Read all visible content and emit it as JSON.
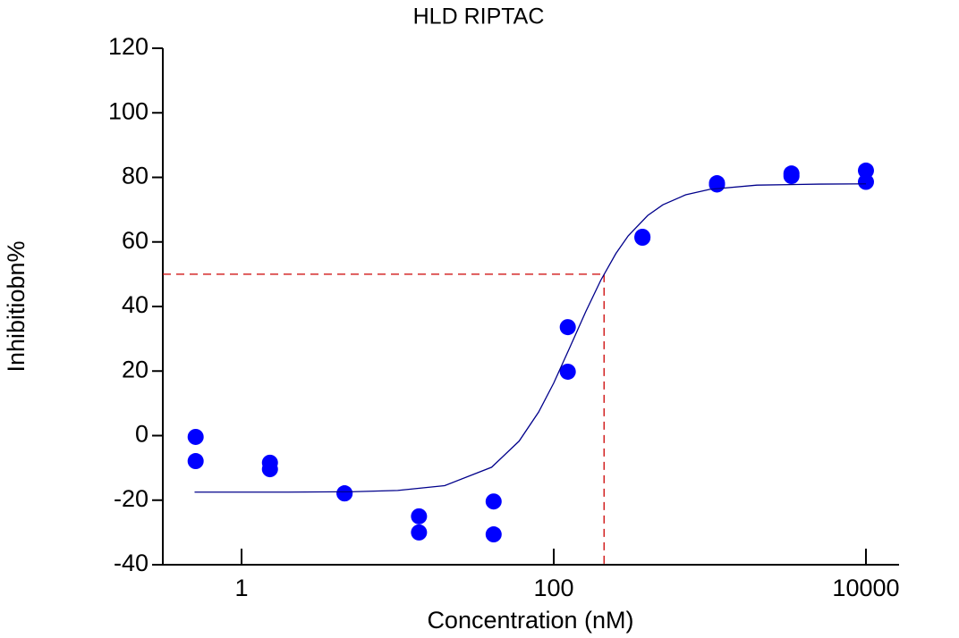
{
  "chart_data": {
    "type": "scatter",
    "title": "HLD RIPTAC",
    "x_label": "Concentration (nM)",
    "y_label": "Inhibitiobn%",
    "xscale": "log",
    "xlim": [
      0.313,
      16300
    ],
    "ylim": [
      -40,
      120
    ],
    "xticks": [
      1,
      100,
      10000
    ],
    "yticks": [
      -40,
      -20,
      0,
      20,
      40,
      60,
      80,
      100,
      120
    ],
    "series": [
      {
        "style": "markers",
        "color": "#0000ff",
        "x": [
          0.508,
          0.508,
          1.52,
          1.52,
          4.57,
          4.57,
          13.7,
          13.7,
          41.2,
          41.2,
          123,
          123,
          370,
          370,
          1111,
          1111,
          3333,
          3333,
          10000,
          10000
        ],
        "values": [
          -0.4,
          -7.9,
          -8.4,
          -10.4,
          -17.9,
          -17.9,
          -25,
          -30,
          -20.4,
          -30.6,
          33.6,
          19.8,
          61.6,
          61.3,
          78.2,
          77.8,
          81.2,
          80.4,
          82.1,
          78.6
        ]
      },
      {
        "style": "line",
        "color": "#00008b",
        "x": [
          0.5,
          1,
          2,
          5,
          10,
          20,
          40,
          60,
          80,
          100,
          130,
          160,
          200,
          250,
          300,
          400,
          500,
          700,
          1000,
          2000,
          5000,
          10000
        ],
        "values": [
          -17.5,
          -17.5,
          -17.5,
          -17.4,
          -17.0,
          -15.5,
          -9.8,
          -1.7,
          7.3,
          16.3,
          28.5,
          38.3,
          48.1,
          56.4,
          61.9,
          68.2,
          71.5,
          74.6,
          76.3,
          77.6,
          77.9,
          78.0
        ]
      }
    ],
    "reference": {
      "x": 210,
      "y": 50,
      "color": "#cc0000"
    }
  }
}
